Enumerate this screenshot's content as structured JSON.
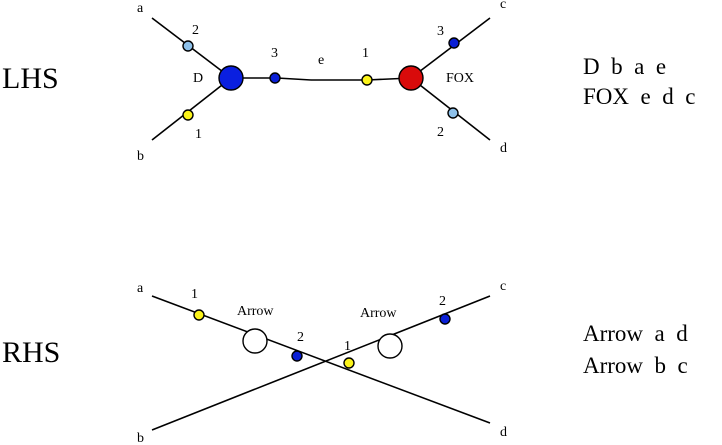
{
  "lhs": {
    "section_label": "LHS",
    "nodes": {
      "left_name": "D",
      "right_name": "FOX"
    },
    "legs": {
      "a": "a",
      "b": "b",
      "c": "c",
      "d": "d",
      "e": "e"
    },
    "port_numbers": {
      "left_upper": "2",
      "left_lower": "1",
      "left_right": "3",
      "right_left": "1",
      "right_upper": "3",
      "right_lower": "2"
    },
    "rules": [
      "D  b  a  e",
      "FOX  e  d  c"
    ]
  },
  "rhs": {
    "section_label": "RHS",
    "nodes": {
      "left_name": "Arrow",
      "right_name": "Arrow"
    },
    "legs": {
      "a": "a",
      "b": "b",
      "c": "c",
      "d": "d"
    },
    "port_numbers": {
      "left_upper": "1",
      "left_lower": "2",
      "right_lower": "1",
      "right_upper": "2"
    },
    "rules": [
      "Arrow  a  d",
      "Arrow  b  c"
    ]
  },
  "colors": {
    "light_port": "#8ec1ea",
    "dark_port": "#0a1fd6",
    "yellow_port": "#fbf31a",
    "D_node": "#0a1fe0",
    "FOX_node": "#d90b0b",
    "arrow_node": "#ffffff"
  }
}
